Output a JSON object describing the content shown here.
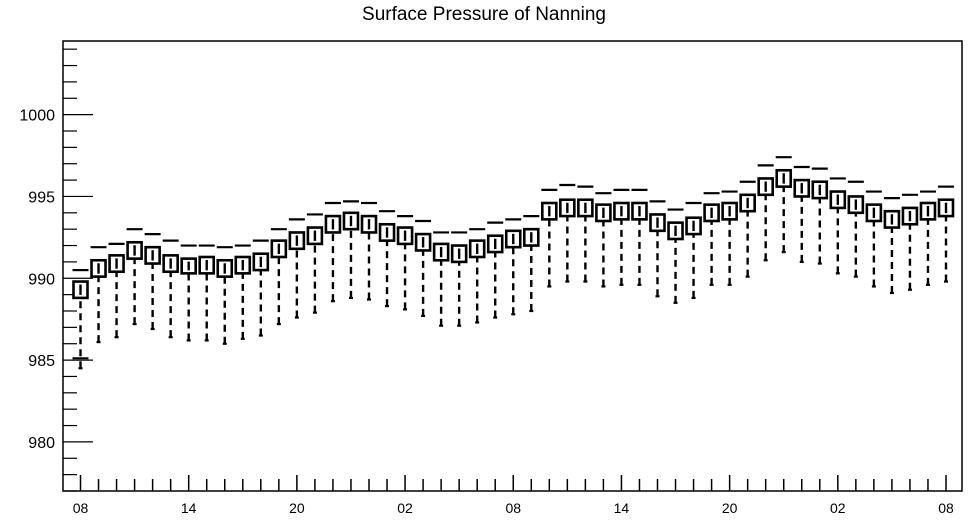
{
  "chart_data": {
    "type": "box",
    "title": "Surface Pressure of Nanning",
    "xlabel": "",
    "ylabel": "",
    "ylim": [
      977,
      1004.5
    ],
    "y_ticks": [
      980,
      985,
      990,
      995,
      1000
    ],
    "x_tick_labels": [
      "08",
      "14",
      "20",
      "02",
      "08",
      "14",
      "20",
      "02",
      "08"
    ],
    "x_tick_label_steps": [
      0,
      6,
      12,
      18,
      24,
      30,
      36,
      42,
      48
    ],
    "grid": false,
    "series": [
      {
        "median": [
          989.3,
          990.6,
          990.9,
          991.7,
          991.4,
          990.9,
          990.7,
          990.8,
          990.6,
          990.8,
          991.0,
          991.8,
          992.3,
          992.6,
          993.3,
          993.5,
          993.3,
          992.8,
          992.6,
          992.2,
          991.6,
          991.5,
          991.8,
          992.1,
          992.4,
          992.5,
          994.1,
          994.3,
          994.3,
          994.0,
          994.1,
          994.1,
          993.4,
          992.9,
          993.2,
          994.0,
          994.1,
          994.6,
          995.6,
          996.1,
          995.5,
          995.4,
          994.8,
          994.5,
          994.0,
          993.6,
          993.8,
          994.1,
          994.3
        ],
        "q1": [
          988.8,
          990.1,
          990.4,
          991.2,
          990.9,
          990.4,
          990.3,
          990.3,
          990.1,
          990.3,
          990.5,
          991.3,
          991.8,
          992.1,
          992.8,
          993.0,
          992.8,
          992.3,
          992.1,
          991.7,
          991.1,
          991.0,
          991.3,
          991.6,
          991.9,
          992.0,
          993.6,
          993.8,
          993.8,
          993.5,
          993.6,
          993.6,
          992.9,
          992.4,
          992.7,
          993.5,
          993.6,
          994.1,
          995.1,
          995.6,
          995.0,
          994.9,
          994.3,
          994.0,
          993.5,
          993.1,
          993.3,
          993.6,
          993.8
        ],
        "q3": [
          989.8,
          991.1,
          991.4,
          992.2,
          991.9,
          991.4,
          991.2,
          991.3,
          991.1,
          991.3,
          991.5,
          992.3,
          992.8,
          993.1,
          993.8,
          994.0,
          993.8,
          993.3,
          993.1,
          992.7,
          992.1,
          992.0,
          992.3,
          992.6,
          992.9,
          993.0,
          994.6,
          994.8,
          994.8,
          994.5,
          994.6,
          994.6,
          993.9,
          993.4,
          993.7,
          994.5,
          994.6,
          995.1,
          996.1,
          996.6,
          996.0,
          995.9,
          995.3,
          995.0,
          994.5,
          994.1,
          994.3,
          994.6,
          994.8
        ],
        "min": [
          984.5,
          986.1,
          986.4,
          987.2,
          986.9,
          986.4,
          986.2,
          986.2,
          986.0,
          986.3,
          986.5,
          987.2,
          987.6,
          987.9,
          988.6,
          988.8,
          988.7,
          988.3,
          988.1,
          987.7,
          987.1,
          987.1,
          987.3,
          987.6,
          987.8,
          988.0,
          989.5,
          989.8,
          989.8,
          989.5,
          989.6,
          989.6,
          988.9,
          988.5,
          988.8,
          989.6,
          989.6,
          990.1,
          991.1,
          991.6,
          991.0,
          990.9,
          990.3,
          990.1,
          989.5,
          989.1,
          989.3,
          989.6,
          989.8
        ],
        "max": [
          990.5,
          991.9,
          992.1,
          993.0,
          992.7,
          992.3,
          992.0,
          992.0,
          991.9,
          992.0,
          992.3,
          993.0,
          993.6,
          993.9,
          994.6,
          994.7,
          994.6,
          994.1,
          993.8,
          993.5,
          992.8,
          992.8,
          993.0,
          993.4,
          993.6,
          993.8,
          995.4,
          995.7,
          995.6,
          995.2,
          995.4,
          995.4,
          994.7,
          994.2,
          994.6,
          995.2,
          995.3,
          995.9,
          996.9,
          997.4,
          996.8,
          996.7,
          996.1,
          995.9,
          995.3,
          994.9,
          995.1,
          995.3,
          995.6
        ]
      }
    ]
  }
}
